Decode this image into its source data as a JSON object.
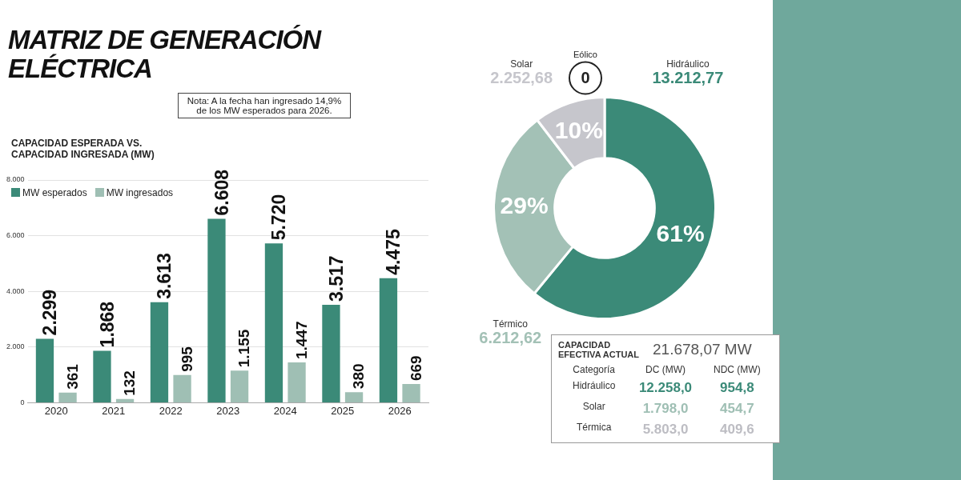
{
  "chart_data": [
    {
      "type": "bar",
      "title": "MATRIZ DE GENERACIÓN ELÉCTRICA",
      "subtitle": "CAPACIDAD ESPERADA VS. CAPACIDAD INGRESADA (MW)",
      "annotations": [
        "Nota: A la fecha han ingresado 14,9% de los MW esperados para 2026."
      ],
      "categories": [
        "2020",
        "2021",
        "2022",
        "2023",
        "2024",
        "2025",
        "2026"
      ],
      "series": [
        {
          "name": "MW esperados",
          "color": "#3b8a78",
          "values": [
            2299,
            1868,
            3613,
            6608,
            5720,
            3517,
            4475
          ],
          "value_labels": [
            "2.299",
            "1.868",
            "3.613",
            "6.608",
            "5.720",
            "3.517",
            "4.475"
          ]
        },
        {
          "name": "MW ingresados",
          "color": "#9fbfb4",
          "values": [
            361,
            132,
            995,
            1155,
            1447,
            380,
            669
          ],
          "value_labels": [
            "361",
            "132",
            "995",
            "1.155",
            "1.447",
            "380",
            "669"
          ]
        }
      ],
      "ylim": [
        0,
        8000
      ],
      "yticks": [
        {
          "value": 0,
          "label": "0"
        },
        {
          "value": 2000,
          "label": "2.000"
        },
        {
          "value": 4000,
          "label": "4.000"
        },
        {
          "value": 6000,
          "label": "6.000"
        },
        {
          "value": 8000,
          "label": "8.000"
        }
      ],
      "grid": "y",
      "legend": "top left"
    },
    {
      "type": "donut",
      "categories": [
        "Hidráulico",
        "Térmico",
        "Solar",
        "Eólico"
      ],
      "values": [
        13212.77,
        6212.62,
        2252.68,
        0
      ],
      "value_labels": [
        "13.212,77",
        "6.212,62",
        "2.252,68",
        "0"
      ],
      "colors": [
        "#3b8a78",
        "#a3c1b6",
        "#c6c6cc",
        "#ffffff"
      ],
      "annotations": [
        {
          "text": "61%",
          "x": "Hidráulico"
        },
        {
          "text": "29%",
          "x": "Térmico"
        },
        {
          "text": "10%",
          "x": "Solar"
        }
      ],
      "legend": false
    },
    {
      "type": "other",
      "title": "CAPACIDAD EFECTIVA ACTUAL",
      "subtitle": "21.678,07 MW",
      "annotations": [
        "Categoría",
        "DC (MW)",
        "NDC (MW)",
        "Hidráulico",
        "12.258,0",
        "954,8",
        "Solar",
        "1.798,0",
        "454,7",
        "Térmica",
        "5.803,0",
        "409,6"
      ]
    }
  ]
}
